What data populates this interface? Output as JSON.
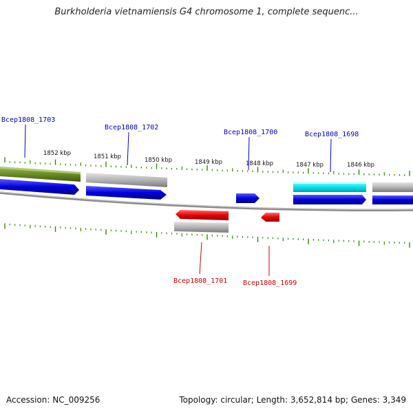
{
  "title": "Burkholderia vietnamiensis G4 chromosome 1, complete sequenc...",
  "colors": {
    "forward_feature": "#0000e0",
    "reverse_feature": "#f00000",
    "tick": "#2e8b00",
    "gray_feature": "#b8b8b8",
    "olive_feature": "#6b8e23",
    "cyan_feature": "#00e8f0",
    "backbone": "#8a8a8a",
    "label_forward": "#0000c8",
    "label_reverse": "#c80000"
  },
  "scale_labels": [
    "1852 kbp",
    "1851 kbp",
    "1850 kbp",
    "1849 kbp",
    "1848 kbp",
    "1847 kbp",
    "1846 kbp"
  ],
  "genes": [
    {
      "name": "Bcep1808_1703",
      "strand": "forward"
    },
    {
      "name": "Bcep1808_1702",
      "strand": "forward"
    },
    {
      "name": "Bcep1808_1701",
      "strand": "reverse"
    },
    {
      "name": "Bcep1808_1700",
      "strand": "forward"
    },
    {
      "name": "Bcep1808_1699",
      "strand": "reverse"
    },
    {
      "name": "Bcep1808_1698",
      "strand": "forward"
    }
  ],
  "footer": {
    "accession": "Accession: NC_009256",
    "info": "Topology: circular; Length: 3,652,814 bp; Genes: 3,349"
  }
}
